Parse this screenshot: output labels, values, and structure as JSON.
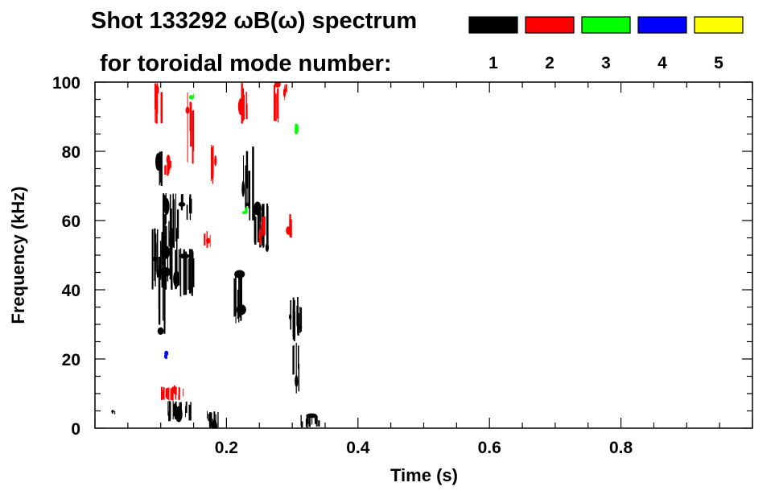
{
  "chart_data": {
    "type": "heatmap",
    "title": "Shot 133292 ωB(ω) spectrum",
    "subtitle": "for toroidal mode number:",
    "xlabel": "Time (s)",
    "ylabel": "Frequency (kHz)",
    "xlim": [
      0.0,
      1.0
    ],
    "ylim": [
      0,
      100
    ],
    "x_ticks": [
      0.2,
      0.4,
      0.6,
      0.8
    ],
    "x_tick_labels": [
      "0.2",
      "0.4",
      "0.6",
      "0.8"
    ],
    "y_ticks": [
      0,
      20,
      40,
      60,
      80,
      100
    ],
    "y_tick_labels": [
      "0",
      "20",
      "40",
      "60",
      "80",
      "100"
    ],
    "legend": {
      "placement": "top-right",
      "entries": [
        {
          "label": "1",
          "color": "#000000"
        },
        {
          "label": "2",
          "color": "#ff0000"
        },
        {
          "label": "3",
          "color": "#00ff00"
        },
        {
          "label": "4",
          "color": "#0000ff"
        },
        {
          "label": "5",
          "color": "#ffff00"
        }
      ]
    },
    "grid": false,
    "regions": [
      {
        "mode": "1",
        "color": "#000000",
        "t": [
          0.085,
          0.125
        ],
        "f": [
          40,
          58
        ]
      },
      {
        "mode": "1",
        "color": "#000000",
        "t": [
          0.1,
          0.125
        ],
        "f": [
          52,
          68
        ]
      },
      {
        "mode": "1",
        "color": "#000000",
        "t": [
          0.12,
          0.15
        ],
        "f": [
          38,
          52
        ]
      },
      {
        "mode": "1",
        "color": "#000000",
        "t": [
          0.095,
          0.105
        ],
        "f": [
          25,
          50
        ]
      },
      {
        "mode": "1",
        "color": "#000000",
        "t": [
          0.095,
          0.105
        ],
        "f": [
          70,
          80
        ]
      },
      {
        "mode": "1",
        "color": "#000000",
        "t": [
          0.13,
          0.145
        ],
        "f": [
          60,
          68
        ]
      },
      {
        "mode": "1",
        "color": "#000000",
        "t": [
          0.225,
          0.24
        ],
        "f": [
          60,
          82
        ]
      },
      {
        "mode": "1",
        "color": "#000000",
        "t": [
          0.24,
          0.265
        ],
        "f": [
          52,
          65
        ]
      },
      {
        "mode": "1",
        "color": "#000000",
        "t": [
          0.21,
          0.23
        ],
        "f": [
          30,
          45
        ]
      },
      {
        "mode": "1",
        "color": "#000000",
        "t": [
          0.295,
          0.315
        ],
        "f": [
          25,
          38
        ]
      },
      {
        "mode": "1",
        "color": "#000000",
        "t": [
          0.3,
          0.31
        ],
        "f": [
          10,
          25
        ]
      },
      {
        "mode": "1",
        "color": "#000000",
        "t": [
          0.11,
          0.145
        ],
        "f": [
          2,
          8
        ]
      },
      {
        "mode": "1",
        "color": "#000000",
        "t": [
          0.17,
          0.19
        ],
        "f": [
          0,
          5
        ]
      },
      {
        "mode": "1",
        "color": "#000000",
        "t": [
          0.31,
          0.34
        ],
        "f": [
          0,
          4
        ]
      },
      {
        "mode": "1",
        "color": "#000000",
        "t": [
          0.025,
          0.03
        ],
        "f": [
          4,
          5
        ]
      },
      {
        "mode": "2",
        "color": "#ff0000",
        "t": [
          0.09,
          0.1
        ],
        "f": [
          88,
          100
        ]
      },
      {
        "mode": "2",
        "color": "#ff0000",
        "t": [
          0.105,
          0.115
        ],
        "f": [
          72,
          78
        ]
      },
      {
        "mode": "2",
        "color": "#ff0000",
        "t": [
          0.14,
          0.15
        ],
        "f": [
          75,
          98
        ]
      },
      {
        "mode": "2",
        "color": "#ff0000",
        "t": [
          0.165,
          0.175
        ],
        "f": [
          52,
          57
        ]
      },
      {
        "mode": "2",
        "color": "#ff0000",
        "t": [
          0.175,
          0.185
        ],
        "f": [
          70,
          82
        ]
      },
      {
        "mode": "2",
        "color": "#ff0000",
        "t": [
          0.22,
          0.23
        ],
        "f": [
          88,
          100
        ]
      },
      {
        "mode": "2",
        "color": "#ff0000",
        "t": [
          0.27,
          0.28
        ],
        "f": [
          88,
          100
        ]
      },
      {
        "mode": "2",
        "color": "#ff0000",
        "t": [
          0.285,
          0.29
        ],
        "f": [
          94,
          100
        ]
      },
      {
        "mode": "2",
        "color": "#ff0000",
        "t": [
          0.25,
          0.26
        ],
        "f": [
          55,
          62
        ]
      },
      {
        "mode": "2",
        "color": "#ff0000",
        "t": [
          0.29,
          0.3
        ],
        "f": [
          55,
          62
        ]
      },
      {
        "mode": "2",
        "color": "#ff0000",
        "t": [
          0.1,
          0.135
        ],
        "f": [
          8,
          12
        ]
      },
      {
        "mode": "3",
        "color": "#00ff00",
        "t": [
          0.145,
          0.15
        ],
        "f": [
          95,
          97
        ]
      },
      {
        "mode": "3",
        "color": "#00ff00",
        "t": [
          0.3,
          0.31
        ],
        "f": [
          85,
          88
        ]
      },
      {
        "mode": "3",
        "color": "#00ff00",
        "t": [
          0.225,
          0.23
        ],
        "f": [
          62,
          64
        ]
      },
      {
        "mode": "4",
        "color": "#0000ff",
        "t": [
          0.105,
          0.11
        ],
        "f": [
          20,
          22
        ]
      }
    ]
  }
}
